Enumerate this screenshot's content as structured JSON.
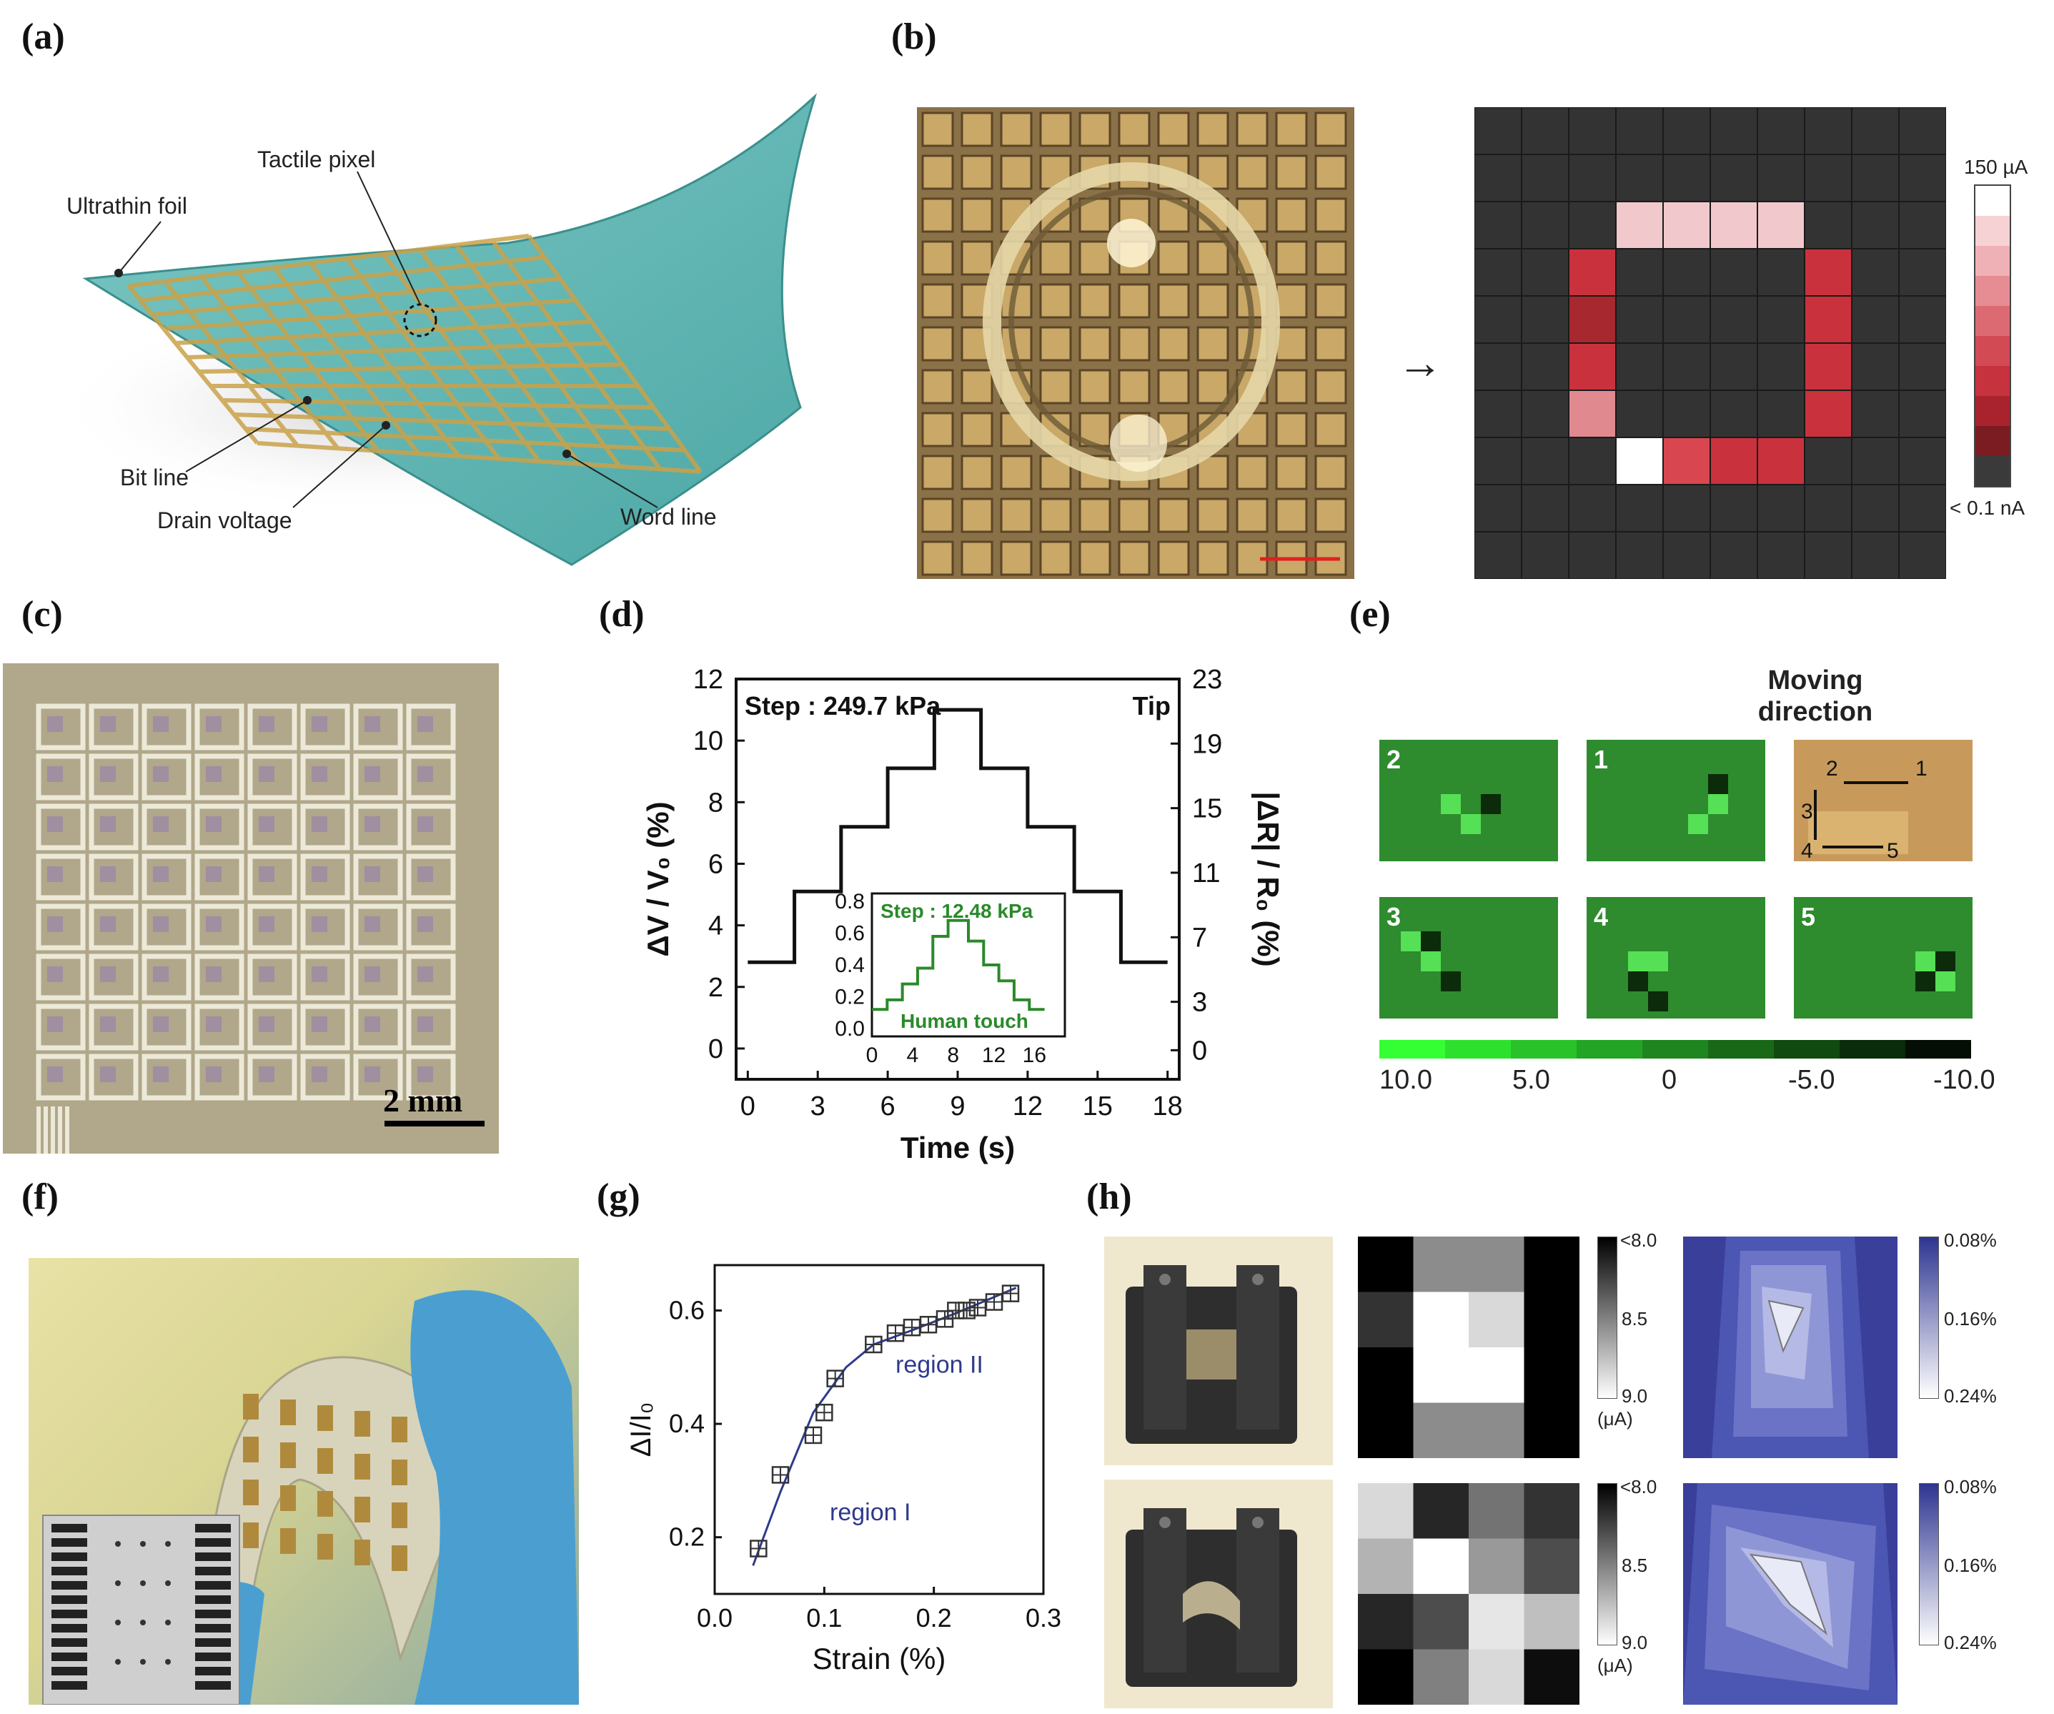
{
  "panel_labels": [
    "(a)",
    "(b)",
    "(c)",
    "(d)",
    "(e)",
    "(f)",
    "(g)",
    "(h)"
  ],
  "panel_a": {
    "callouts": [
      "Ultrathin foil",
      "Tactile pixel",
      "Bit line",
      "Drain voltage",
      "Word line"
    ]
  },
  "panel_b": {
    "colorbar_max": "150 µA",
    "colorbar_min": "< 0.1 nA",
    "arrow": "→",
    "heatmap_rows": 10,
    "heatmap_cols": 10,
    "colors": {
      "bg": "#333333",
      "grid": "#1a1a1a",
      "hot": "#c9323d",
      "light": "#f1c9cd",
      "white": "#ffffff"
    }
  },
  "panel_c": {
    "scale_bar": "2 mm"
  },
  "panel_d": {
    "chart_data": {
      "type": "line",
      "xlabel": "Time (s)",
      "ylabel_left": "ΔV / V₀ (%)",
      "ylabel_right": "|ΔR| / R₀ (%)",
      "xlim": [
        -0.5,
        18.5
      ],
      "ylim_left": [
        -1,
        12
      ],
      "ylim_right": [
        -1.8,
        23
      ],
      "xticks": [
        "0",
        "3",
        "6",
        "9",
        "12",
        "15",
        "18"
      ],
      "yticks_left": [
        "0",
        "2",
        "4",
        "6",
        "8",
        "10",
        "12"
      ],
      "yticks_right": [
        "0",
        "3",
        "7",
        "11",
        "15",
        "19",
        "23"
      ],
      "annotation_left": "Step : 249.7 kPa",
      "annotation_right": "Tip",
      "series": [
        {
          "x": [
            0,
            2,
            2,
            4,
            4,
            6,
            6,
            8,
            8,
            10,
            10,
            12,
            12,
            14,
            14,
            16,
            16,
            18
          ],
          "y": [
            2.8,
            2.8,
            5.1,
            5.1,
            7.2,
            7.2,
            9.1,
            9.1,
            11.0,
            11.0,
            9.1,
            9.1,
            7.2,
            7.2,
            5.1,
            5.1,
            2.8,
            2.8
          ]
        }
      ],
      "inset": {
        "title": "Step : 12.48 kPa",
        "label": "Human touch",
        "xticks": [
          "0",
          "4",
          "8",
          "12",
          "16"
        ],
        "yticks": [
          "0.0",
          "0.2",
          "0.4",
          "0.6",
          "0.8"
        ],
        "xlim": [
          0,
          19
        ],
        "ylim": [
          -0.05,
          0.85
        ],
        "x": [
          0,
          1.5,
          1.5,
          3,
          3,
          4.5,
          4.5,
          6,
          6,
          7.5,
          7.5,
          9.5,
          9.5,
          11,
          11,
          12.5,
          12.5,
          14,
          14,
          15.5,
          15.5,
          17
        ],
        "y": [
          0.12,
          0.12,
          0.18,
          0.18,
          0.28,
          0.28,
          0.38,
          0.38,
          0.58,
          0.58,
          0.68,
          0.68,
          0.55,
          0.55,
          0.4,
          0.4,
          0.3,
          0.3,
          0.18,
          0.18,
          0.12,
          0.12
        ],
        "color": "#2a8a2a"
      }
    }
  },
  "panel_e": {
    "title_line1": "Moving",
    "title_line2": "direction",
    "frame_labels": [
      "2",
      "1",
      "3",
      "4",
      "5"
    ],
    "colorbar_ticks": [
      "10.0",
      "5.0",
      "0",
      "-5.0",
      "-10.0"
    ],
    "photo_labels": [
      "2",
      "1",
      "3",
      "4",
      "5"
    ]
  },
  "panel_g": {
    "chart_data": {
      "type": "scatter",
      "xlabel": "Strain (%)",
      "ylabel": "ΔI/I₀",
      "xlim": [
        0,
        0.3
      ],
      "ylim": [
        0.1,
        0.68
      ],
      "xticks": [
        "0.0",
        "0.1",
        "0.2",
        "0.3"
      ],
      "yticks": [
        "0.2",
        "0.4",
        "0.6"
      ],
      "annotations": [
        "region I",
        "region II"
      ],
      "x": [
        0.04,
        0.06,
        0.09,
        0.1,
        0.11,
        0.145,
        0.165,
        0.18,
        0.195,
        0.21,
        0.22,
        0.23,
        0.24,
        0.255,
        0.27
      ],
      "y": [
        0.18,
        0.31,
        0.38,
        0.42,
        0.48,
        0.54,
        0.56,
        0.57,
        0.575,
        0.585,
        0.6,
        0.6,
        0.605,
        0.615,
        0.63
      ],
      "fit_x": [
        0.035,
        0.06,
        0.09,
        0.12,
        0.145,
        0.18,
        0.22,
        0.275
      ],
      "fit_y": [
        0.15,
        0.28,
        0.42,
        0.5,
        0.54,
        0.565,
        0.595,
        0.64
      ],
      "color": "#2e3a8c"
    }
  },
  "panel_h": {
    "gray_ticks": [
      "<8.0",
      "8.5",
      "9.0"
    ],
    "gray_unit": "(μA)",
    "blue_ticks": [
      "0.08%",
      "0.16%",
      "0.24%"
    ],
    "gray_map_top": [
      [
        0,
        0.55,
        0.55,
        0
      ],
      [
        0.2,
        1,
        0.85,
        0
      ],
      [
        0,
        1,
        1,
        0
      ],
      [
        0,
        0.55,
        0.55,
        0
      ]
    ],
    "gray_map_bottom": [
      [
        0.85,
        0.15,
        0.45,
        0.2
      ],
      [
        0.7,
        1,
        0.6,
        0.3
      ],
      [
        0.15,
        0.3,
        0.9,
        0.75
      ],
      [
        0,
        0.5,
        0.85,
        0.05
      ]
    ]
  }
}
